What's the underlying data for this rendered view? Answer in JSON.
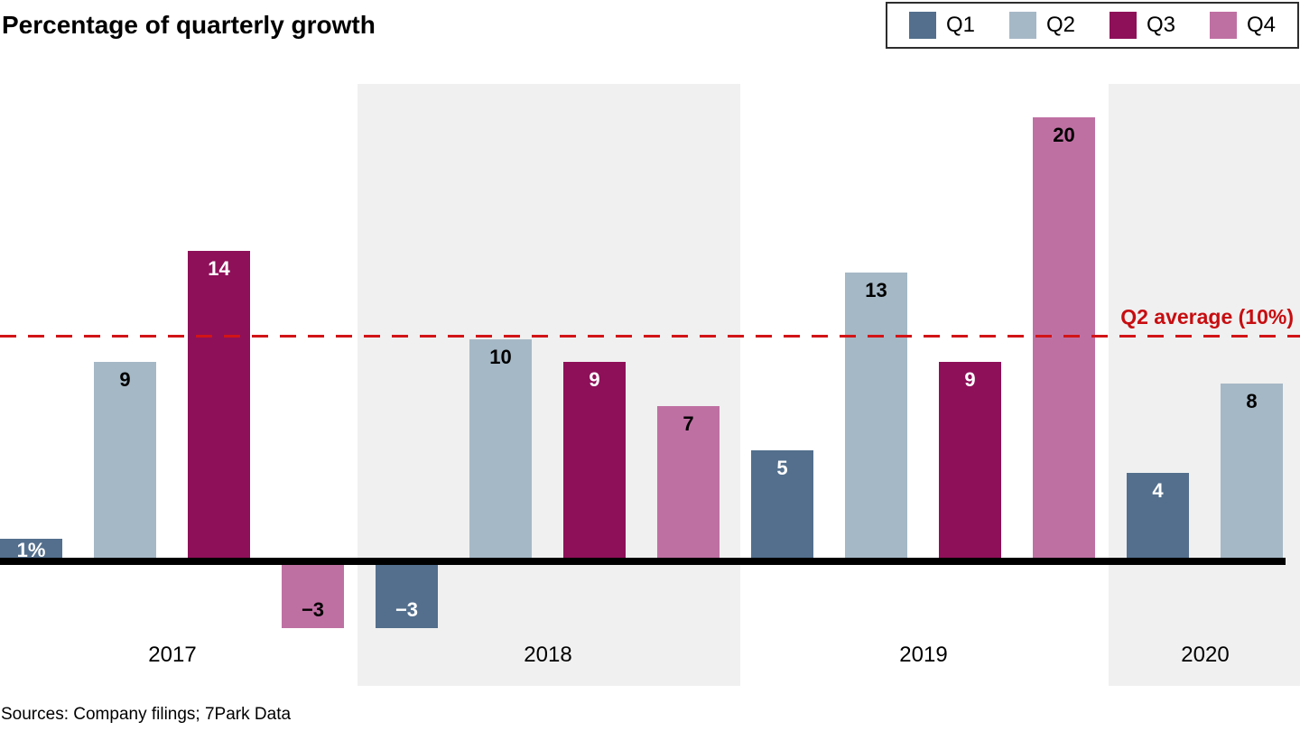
{
  "title": "Percentage of quarterly growth",
  "source": "Sources: Company filings; 7Park Data",
  "legend": {
    "position": "top-right",
    "items": [
      {
        "label": "Q1",
        "color": "#536f8d"
      },
      {
        "label": "Q2",
        "color": "#a5b8c6"
      },
      {
        "label": "Q3",
        "color": "#8e1059"
      },
      {
        "label": "Q4",
        "color": "#bf70a3"
      }
    ]
  },
  "annotation": {
    "label": "Q2 average (10%)",
    "value": 10,
    "text_color": "#c70d10",
    "line_color": "#d21417",
    "line_style": "dashed"
  },
  "chart_data": {
    "type": "bar",
    "title": "Percentage of quarterly growth",
    "categories": [
      "2017",
      "2018",
      "2019",
      "2020"
    ],
    "series": [
      {
        "name": "Q1",
        "color": "#536f8d",
        "label_color": "#ffffff",
        "values": [
          1,
          -3,
          5,
          4
        ],
        "labels": [
          "1%",
          "−3",
          "5",
          "4"
        ]
      },
      {
        "name": "Q2",
        "color": "#a5b8c6",
        "label_color": "#000000",
        "values": [
          9,
          10,
          13,
          8
        ],
        "labels": [
          "9",
          "10",
          "13",
          "8"
        ]
      },
      {
        "name": "Q3",
        "color": "#8e1059",
        "label_color": "#ffffff",
        "values": [
          14,
          9,
          9,
          null
        ],
        "labels": [
          "14",
          "9",
          "9",
          null
        ]
      },
      {
        "name": "Q4",
        "color": "#bf70a3",
        "label_color": "#000000",
        "values": [
          -3,
          7,
          20,
          null
        ],
        "labels": [
          "−3",
          "7",
          "20",
          null
        ]
      }
    ],
    "unit": "%",
    "baseline_value": 0,
    "ylim": [
      -4,
      21
    ],
    "grid": false,
    "highlighted_categories": [
      false,
      true,
      false,
      true
    ],
    "highlight_color": "#f0f0f0",
    "reference_line": {
      "label": "Q2 average (10%)",
      "value": 10
    }
  }
}
